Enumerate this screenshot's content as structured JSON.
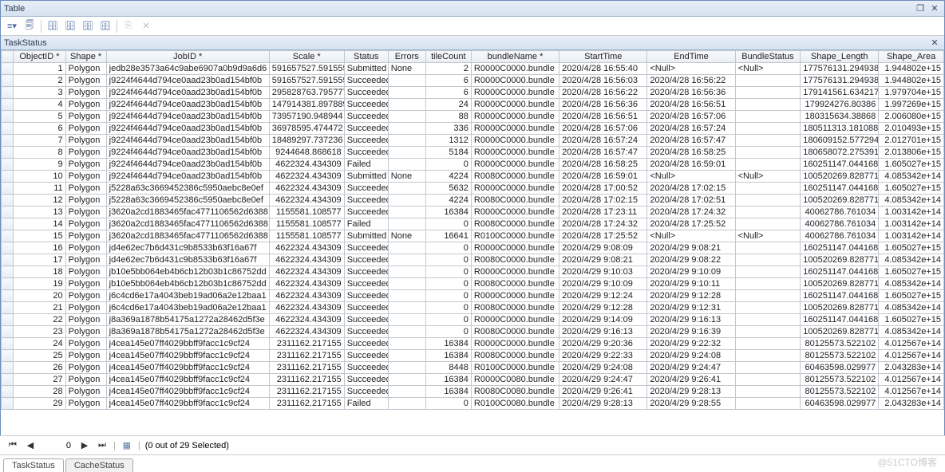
{
  "window": {
    "title": "Table",
    "restore": "❐",
    "close": "✕"
  },
  "toolbar_icons": [
    "menu",
    "copy",
    "|",
    "db1",
    "db2",
    "db3",
    "db4",
    "|",
    "del-grey",
    "x-grey"
  ],
  "subtitle": {
    "label": "TaskStatus",
    "close": "✕"
  },
  "columns": [
    "",
    "ObjectID *",
    "Shape *",
    "JobID *",
    "Scale *",
    "Status",
    "Errors",
    "tileCount",
    "bundleName *",
    "StartTime",
    "EndTime",
    "BundleStatus",
    "Shape_Length",
    "Shape_Area"
  ],
  "col_align": [
    "",
    "r",
    "l",
    "l",
    "r",
    "l",
    "l",
    "r",
    "l",
    "l",
    "l",
    "l",
    "r",
    "r"
  ],
  "rows": [
    [
      "1",
      "Polygon",
      "jedb28e3573a64c9abe6907a0b9d9a6d6",
      "591657527.591555",
      "Submitted",
      "None",
      "2",
      "R0000C0000.bundle",
      "2020/4/28 16:55:40",
      "<Null>",
      "<Null>",
      "177576131.294938",
      "1.944802e+15"
    ],
    [
      "2",
      "Polygon",
      "j9224f4644d794ce0aad23b0ad154bf0b",
      "591657527.591555",
      "Succeeded",
      "",
      "6",
      "R0000C0000.bundle",
      "2020/4/28 16:56:03",
      "2020/4/28 16:56:22",
      "",
      "177576131.294938",
      "1.944802e+15"
    ],
    [
      "3",
      "Polygon",
      "j9224f4644d794ce0aad23b0ad154bf0b",
      "295828763.795777",
      "Succeeded",
      "",
      "6",
      "R0000C0000.bundle",
      "2020/4/28 16:56:22",
      "2020/4/28 16:56:36",
      "",
      "179141561.634217",
      "1.979704e+15"
    ],
    [
      "4",
      "Polygon",
      "j9224f4644d794ce0aad23b0ad154bf0b",
      "147914381.897889",
      "Succeeded",
      "",
      "24",
      "R0000C0000.bundle",
      "2020/4/28 16:56:36",
      "2020/4/28 16:56:51",
      "",
      "179924276.80386",
      "1.997269e+15"
    ],
    [
      "5",
      "Polygon",
      "j9224f4644d794ce0aad23b0ad154bf0b",
      "73957190.948944",
      "Succeeded",
      "",
      "88",
      "R0000C0000.bundle",
      "2020/4/28 16:56:51",
      "2020/4/28 16:57:06",
      "",
      "180315634.38868",
      "2.006080e+15"
    ],
    [
      "6",
      "Polygon",
      "j9224f4644d794ce0aad23b0ad154bf0b",
      "36978595.474472",
      "Succeeded",
      "",
      "336",
      "R0000C0000.bundle",
      "2020/4/28 16:57:06",
      "2020/4/28 16:57:24",
      "",
      "180511313.181088",
      "2.010493e+15"
    ],
    [
      "7",
      "Polygon",
      "j9224f4644d794ce0aad23b0ad154bf0b",
      "18489297.737236",
      "Succeeded",
      "",
      "1312",
      "R0000C0000.bundle",
      "2020/4/28 16:57:24",
      "2020/4/28 16:57:47",
      "",
      "180609152.577294",
      "2.012701e+15"
    ],
    [
      "8",
      "Polygon",
      "j9224f4644d794ce0aad23b0ad154bf0b",
      "9244648.868618",
      "Succeeded",
      "",
      "5184",
      "R0000C0000.bundle",
      "2020/4/28 16:57:47",
      "2020/4/28 16:58:25",
      "",
      "180658072.275391",
      "2.013806e+15"
    ],
    [
      "9",
      "Polygon",
      "j9224f4644d794ce0aad23b0ad154bf0b",
      "4622324.434309",
      "Failed",
      "",
      "0",
      "R0000C0000.bundle",
      "2020/4/28 16:58:25",
      "2020/4/28 16:59:01",
      "",
      "160251147.044168",
      "1.605027e+15"
    ],
    [
      "10",
      "Polygon",
      "j9224f4644d794ce0aad23b0ad154bf0b",
      "4622324.434309",
      "Submitted",
      "None",
      "4224",
      "R0080C0000.bundle",
      "2020/4/28 16:59:01",
      "<Null>",
      "<Null>",
      "100520269.828771",
      "4.085342e+14"
    ],
    [
      "11",
      "Polygon",
      "j5228a63c3669452386c5950aebc8e0ef",
      "4622324.434309",
      "Succeeded",
      "",
      "5632",
      "R0000C0000.bundle",
      "2020/4/28 17:00:52",
      "2020/4/28 17:02:15",
      "",
      "160251147.044168",
      "1.605027e+15"
    ],
    [
      "12",
      "Polygon",
      "j5228a63c3669452386c5950aebc8e0ef",
      "4622324.434309",
      "Succeeded",
      "",
      "4224",
      "R0080C0000.bundle",
      "2020/4/28 17:02:15",
      "2020/4/28 17:02:51",
      "",
      "100520269.828771",
      "4.085342e+14"
    ],
    [
      "13",
      "Polygon",
      "j3620a2cd1883465fac4771106562d6388",
      "1155581.108577",
      "Succeeded",
      "",
      "16384",
      "R0000C0000.bundle",
      "2020/4/28 17:23:11",
      "2020/4/28 17:24:32",
      "",
      "40062786.761034",
      "1.003142e+14"
    ],
    [
      "14",
      "Polygon",
      "j3620a2cd1883465fac4771106562d6388",
      "1155581.108577",
      "Failed",
      "",
      "0",
      "R0080C0000.bundle",
      "2020/4/28 17:24:32",
      "2020/4/28 17:25:52",
      "",
      "40062786.761034",
      "1.003142e+14"
    ],
    [
      "15",
      "Polygon",
      "j3620a2cd1883465fac4771106562d6388",
      "1155581.108577",
      "Submitted",
      "None",
      "16641",
      "R0100C0000.bundle",
      "2020/4/28 17:25:52",
      "<Null>",
      "<Null>",
      "40062786.761034",
      "1.003142e+14"
    ],
    [
      "16",
      "Polygon",
      "jd4e62ec7b6d431c9b8533b63f16a67f",
      "4622324.434309",
      "Succeeded",
      "",
      "0",
      "R0000C0000.bundle",
      "2020/4/29 9:08:09",
      "2020/4/29 9:08:21",
      "",
      "160251147.044168",
      "1.605027e+15"
    ],
    [
      "17",
      "Polygon",
      "jd4e62ec7b6d431c9b8533b63f16a67f",
      "4622324.434309",
      "Succeeded",
      "",
      "0",
      "R0080C0000.bundle",
      "2020/4/29 9:08:21",
      "2020/4/29 9:08:22",
      "",
      "100520269.828771",
      "4.085342e+14"
    ],
    [
      "18",
      "Polygon",
      "jb10e5bb064eb4b6cb12b03b1c86752dd",
      "4622324.434309",
      "Succeeded",
      "",
      "0",
      "R0000C0000.bundle",
      "2020/4/29 9:10:03",
      "2020/4/29 9:10:09",
      "",
      "160251147.044168",
      "1.605027e+15"
    ],
    [
      "19",
      "Polygon",
      "jb10e5bb064eb4b6cb12b03b1c86752dd",
      "4622324.434309",
      "Succeeded",
      "",
      "0",
      "R0080C0000.bundle",
      "2020/4/29 9:10:09",
      "2020/4/29 9:10:11",
      "",
      "100520269.828771",
      "4.085342e+14"
    ],
    [
      "20",
      "Polygon",
      "j6c4cd6e17a4043beb19ad06a2e12baa1",
      "4622324.434309",
      "Succeeded",
      "",
      "0",
      "R0000C0000.bundle",
      "2020/4/29 9:12:24",
      "2020/4/29 9:12:28",
      "",
      "160251147.044168",
      "1.605027e+15"
    ],
    [
      "21",
      "Polygon",
      "j6c4cd6e17a4043beb19ad06a2e12baa1",
      "4622324.434309",
      "Succeeded",
      "",
      "0",
      "R0080C0000.bundle",
      "2020/4/29 9:12:28",
      "2020/4/29 9:12:31",
      "",
      "100520269.828771",
      "4.085342e+14"
    ],
    [
      "22",
      "Polygon",
      "j8a369a1878b54175a1272a28462d5f3e",
      "4622324.434309",
      "Succeeded",
      "",
      "0",
      "R0000C0000.bundle",
      "2020/4/29 9:14:09",
      "2020/4/29 9:16:13",
      "",
      "160251147.044168",
      "1.605027e+15"
    ],
    [
      "23",
      "Polygon",
      "j8a369a1878b54175a1272a28462d5f3e",
      "4622324.434309",
      "Succeeded",
      "",
      "0",
      "R0080C0000.bundle",
      "2020/4/29 9:16:13",
      "2020/4/29 9:16:39",
      "",
      "100520269.828771",
      "4.085342e+14"
    ],
    [
      "24",
      "Polygon",
      "j4cea145e07ff4029bbff9facc1c9cf24",
      "2311162.217155",
      "Succeeded",
      "",
      "16384",
      "R0000C0000.bundle",
      "2020/4/29 9:20:36",
      "2020/4/29 9:22:32",
      "",
      "80125573.522102",
      "4.012567e+14"
    ],
    [
      "25",
      "Polygon",
      "j4cea145e07ff4029bbff9facc1c9cf24",
      "2311162.217155",
      "Succeeded",
      "",
      "16384",
      "R0080C0000.bundle",
      "2020/4/29 9:22:33",
      "2020/4/29 9:24:08",
      "",
      "80125573.522102",
      "4.012567e+14"
    ],
    [
      "26",
      "Polygon",
      "j4cea145e07ff4029bbff9facc1c9cf24",
      "2311162.217155",
      "Succeeded",
      "",
      "8448",
      "R0100C0000.bundle",
      "2020/4/29 9:24:08",
      "2020/4/29 9:24:47",
      "",
      "60463598.029977",
      "2.043283e+14"
    ],
    [
      "27",
      "Polygon",
      "j4cea145e07ff4029bbff9facc1c9cf24",
      "2311162.217155",
      "Succeeded",
      "",
      "16384",
      "R0000C0080.bundle",
      "2020/4/29 9:24:47",
      "2020/4/29 9:26:41",
      "",
      "80125573.522102",
      "4.012567e+14"
    ],
    [
      "28",
      "Polygon",
      "j4cea145e07ff4029bbff9facc1c9cf24",
      "2311162.217155",
      "Succeeded",
      "",
      "16384",
      "R0080C0080.bundle",
      "2020/4/29 9:26:41",
      "2020/4/29 9:28:13",
      "",
      "80125573.522102",
      "4.012567e+14"
    ],
    [
      "29",
      "Polygon",
      "j4cea145e07ff4029bbff9facc1c9cf24",
      "2311162.217155",
      "Failed",
      "",
      "0",
      "R0100C0080.bundle",
      "2020/4/29 9:28:13",
      "2020/4/29 9:28:55",
      "",
      "60463598.029977",
      "2.043283e+14"
    ]
  ],
  "nav": {
    "first": "⏮",
    "prev": "◀",
    "value": "0",
    "next": "▶",
    "last": "⏭",
    "sep": "|",
    "opts": "▦",
    "status": "(0 out of 29 Selected)"
  },
  "tabs": [
    {
      "label": "TaskStatus",
      "active": true
    },
    {
      "label": "CacheStatus",
      "active": false
    }
  ],
  "watermark": "@51CTO博客",
  "icon_glyphs": {
    "menu": "≡▾",
    "copy": "🗐",
    "db1": "🗄",
    "db2": "🗄",
    "db3": "🗄",
    "db4": "🗄",
    "del-grey": "⎘",
    "x-grey": "✕"
  }
}
